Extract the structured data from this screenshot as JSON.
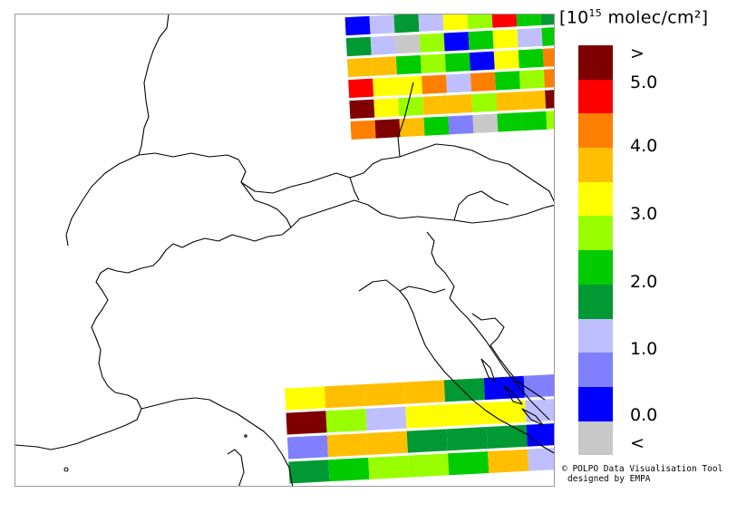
{
  "legend": {
    "title_prefix": "[10",
    "title_exp": "15",
    "title_suffix": " molec/cm²]",
    "colors": [
      "#7f0000",
      "#ff0000",
      "#ff7f00",
      "#ffbf00",
      "#ffff00",
      "#99ff00",
      "#00cc00",
      "#009933",
      "#bfbfff",
      "#8080ff",
      "#0000ff",
      "#c8c8c8"
    ],
    "labels": [
      ">",
      "5.0",
      "4.0",
      "3.0",
      "2.0",
      "1.0",
      "0.0",
      "<"
    ]
  },
  "credit": {
    "line1": "© POLPO Data Visualisation Tool",
    "line2": "designed by EMPA"
  },
  "colors": {
    "border_line": "#000000",
    "frame": "#999999"
  }
}
